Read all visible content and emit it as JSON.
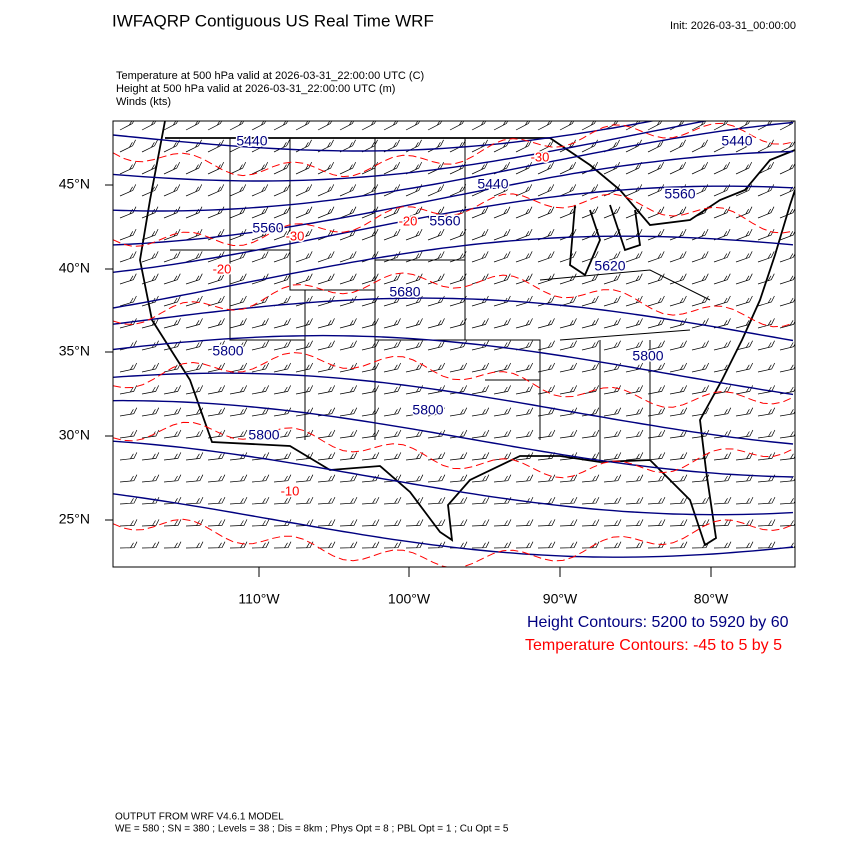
{
  "header": {
    "title": "IWFAQRP Contiguous US Real Time WRF",
    "init": "Init: 2026-03-31_00:00:00"
  },
  "fields": [
    "Temperature at 500 hPa valid at 2026-03-31_22:00:00 UTC   (C)",
    "Height at 500 hPa valid at 2026-03-31_22:00:00 UTC   (m)",
    "Winds   (kts)"
  ],
  "map": {
    "lat_labels": [
      "45°N",
      "40°N",
      "35°N",
      "30°N",
      "25°N"
    ],
    "lon_labels": [
      "110°W",
      "100°W",
      "90°W",
      "80°W"
    ],
    "height_labels": [
      "5440",
      "5440",
      "5440",
      "5560",
      "5560",
      "5560",
      "5620",
      "5680",
      "5800",
      "5800",
      "5800",
      "5800"
    ],
    "temperature_labels": [
      "-30",
      "-30",
      "-20",
      "-20",
      "-10"
    ]
  },
  "legend": {
    "height": "Height Contours: 5200 to 5920 by 60",
    "temperature": "Temperature Contours: -45 to 5 by 5"
  },
  "footer": {
    "line1": "OUTPUT FROM WRF V4.6.1 MODEL",
    "line2": "WE = 580 ; SN = 380 ; Levels = 38 ; Dis = 8km ; Phys Opt = 8 ; PBL Opt = 1 ; Cu Opt = 5"
  }
}
